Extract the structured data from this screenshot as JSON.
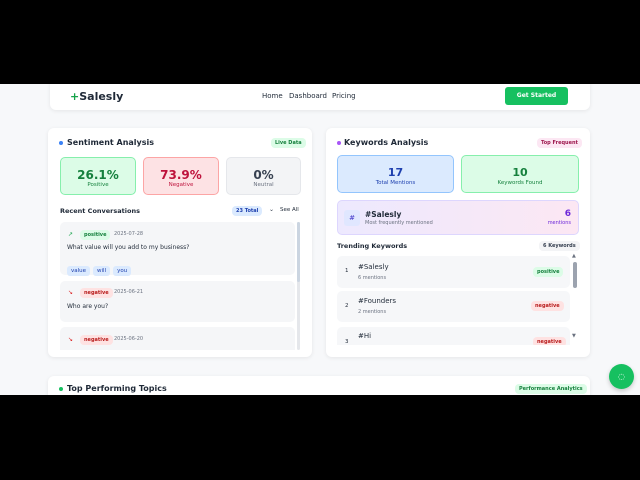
{
  "nav": {
    "brand": "Salesly",
    "links": [
      "Home",
      "Dashboard",
      "Pricing"
    ],
    "cta": "Get Started"
  },
  "sentiment": {
    "title": "Sentiment Analysis",
    "badge": "Live Data",
    "stats": [
      {
        "value": "26.1%",
        "label": "Positive"
      },
      {
        "value": "73.9%",
        "label": "Negative"
      },
      {
        "value": "0%",
        "label": "Neutral"
      }
    ],
    "recent_title": "Recent Conversations",
    "total": "23 Total",
    "see_all": "See All",
    "conversations": [
      {
        "sentiment": "positive",
        "date": "2025-07-28",
        "text": "What value will you add to my business?",
        "tags": [
          "value",
          "will",
          "you"
        ]
      },
      {
        "sentiment": "negative",
        "date": "2025-06-21",
        "text": "Who are you?"
      },
      {
        "sentiment": "negative",
        "date": "2025-06-20"
      }
    ]
  },
  "keywords": {
    "title": "Keywords Analysis",
    "badge": "Top Frequent",
    "stats": [
      {
        "value": "17",
        "label": "Total Mentions"
      },
      {
        "value": "10",
        "label": "Keywords Found"
      }
    ],
    "top": {
      "icon": "#",
      "keyword": "#Salesly",
      "sub": "Most frequently mentioned",
      "count": "6",
      "count_label": "mentions"
    },
    "trending_title": "Trending Keywords",
    "trending_count": "6 Keywords",
    "items": [
      {
        "rank": "1",
        "keyword": "#Salesly",
        "mentions": "6 mentions",
        "sentiment": "positive"
      },
      {
        "rank": "2",
        "keyword": "#Founders",
        "mentions": "2 mentions",
        "sentiment": "negative"
      },
      {
        "rank": "3",
        "keyword": "#Hi",
        "sentiment": "negative"
      }
    ]
  },
  "topics": {
    "title": "Top Performing Topics",
    "badge": "Performance Analytics"
  }
}
